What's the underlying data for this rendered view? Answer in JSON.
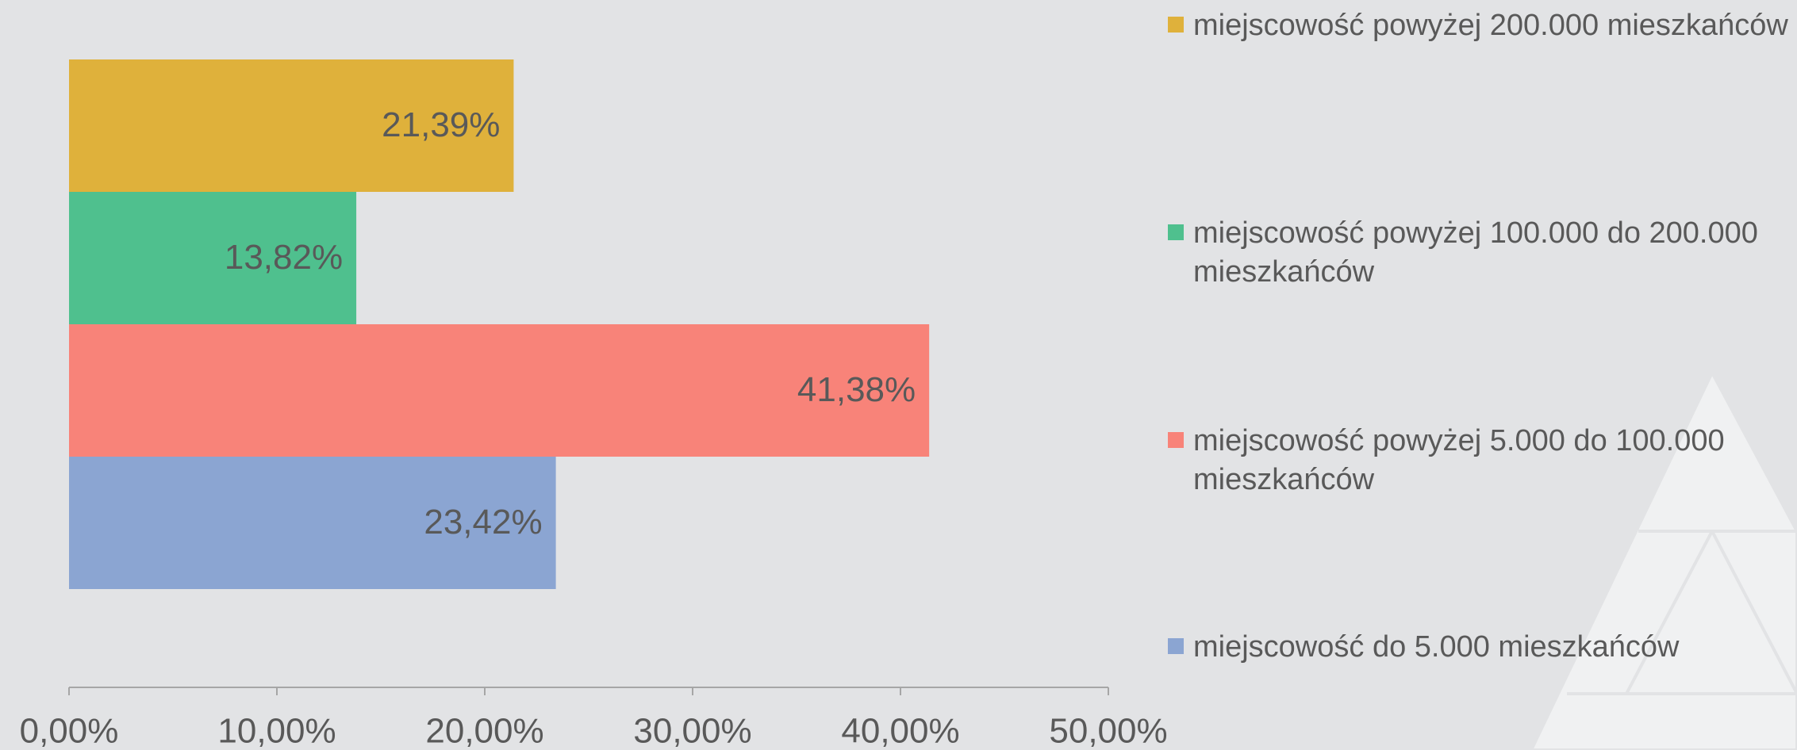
{
  "chart_data": {
    "type": "bar",
    "orientation": "horizontal",
    "series": [
      {
        "name": "miejscowość powyżej 200.000 mieszkańców",
        "color": "#dfb13b",
        "values": [
          21.39
        ],
        "value_labels": [
          "21,39%"
        ]
      },
      {
        "name": "miejscowość powyżej 100.000 do 200.000 mieszkańców",
        "color": "#4fc08e",
        "values": [
          13.82
        ],
        "value_labels": [
          "13,82%"
        ]
      },
      {
        "name": "miejscowość powyżej 5.000 do 100.000 mieszkańców",
        "color": "#f88379",
        "values": [
          41.38
        ],
        "value_labels": [
          "41,38%"
        ]
      },
      {
        "name": "miejscowość do 5.000 mieszkańców",
        "color": "#8ba5d2",
        "values": [
          23.42
        ],
        "value_labels": [
          "23,42%"
        ]
      }
    ],
    "xlim": [
      0,
      50
    ],
    "xticks": [
      {
        "value": 0,
        "label": "0,00%"
      },
      {
        "value": 10,
        "label": "10,00%"
      },
      {
        "value": 20,
        "label": "20,00%"
      },
      {
        "value": 30,
        "label": "30,00%"
      },
      {
        "value": 40,
        "label": "40,00%"
      },
      {
        "value": 50,
        "label": "50,00%"
      }
    ],
    "legend": "right"
  }
}
